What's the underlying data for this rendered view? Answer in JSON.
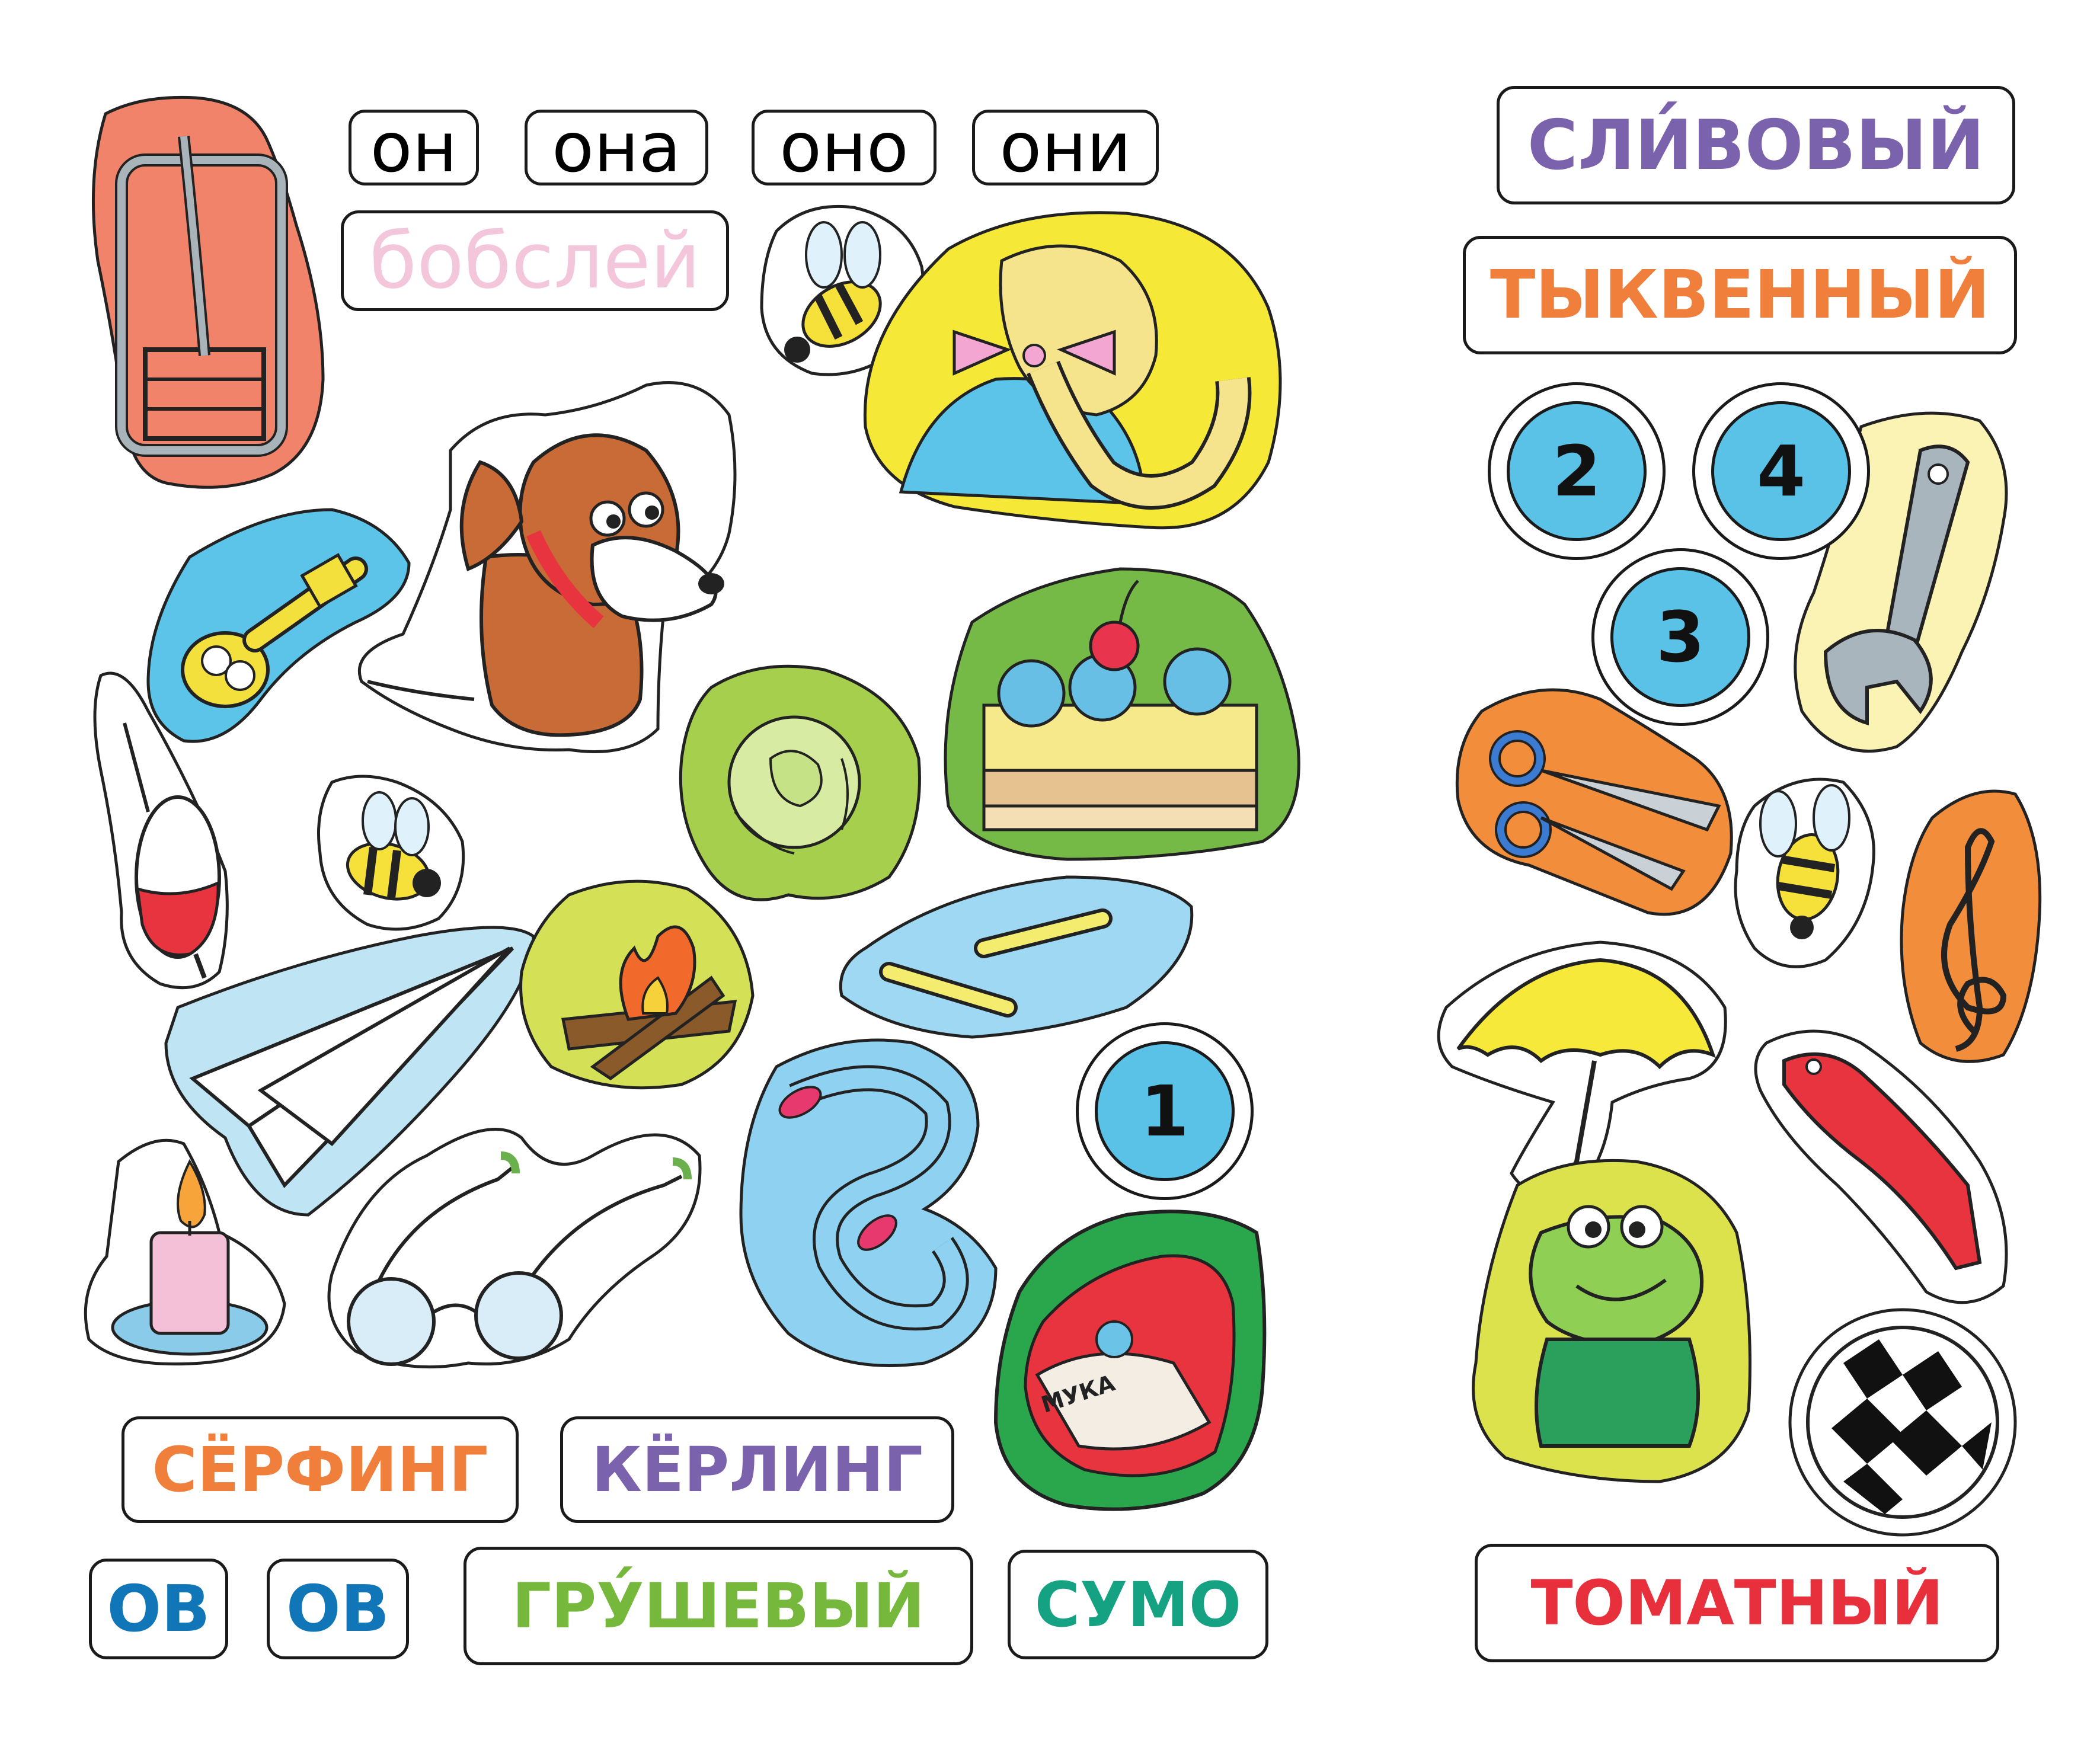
{
  "pronouns": [
    "он",
    "она",
    "оно",
    "они"
  ],
  "word_bobsley": "бобслей",
  "word_slivovy": "СЛИ́ВОВЫЙ",
  "word_tykvenny": "ТЫКВЕННЫЙ",
  "word_serfing": "СЁРФИНГ",
  "word_kerling": "КЁРЛИНГ",
  "word_grushevy": "ГРУ́ШЕВЫЙ",
  "word_sumo": "СУМО",
  "word_tomatny": "ТОМАТНЫЙ",
  "suffix_ov": [
    "ОВ",
    "ОВ"
  ],
  "numbers": [
    "1",
    "2",
    "3",
    "4"
  ],
  "flour_bag_text": "МУКА",
  "colors": {
    "purple": "#7b62ad",
    "orange": "#ef7f3b",
    "red": "#e8303c",
    "green": "#76b83c",
    "teal": "#14a283",
    "blue": "#1076b8",
    "pink": "#f3c6dc",
    "circle": "#59c2e6"
  },
  "icons": [
    "mousetrap-icon",
    "bee-icon",
    "girl-braid-icon",
    "dog-icon",
    "key-icon",
    "fishing-float-icon",
    "cabbage-icon",
    "cake-icon",
    "paper-plane-icon",
    "campfire-icon",
    "bones-icon",
    "candle-icon",
    "glasses-icon",
    "snake-icon",
    "flour-bag-icon",
    "wrench-icon",
    "scissors-icon",
    "treble-clef-icon",
    "umbrella-icon",
    "comb-icon",
    "frog-icon",
    "ball-icon"
  ]
}
